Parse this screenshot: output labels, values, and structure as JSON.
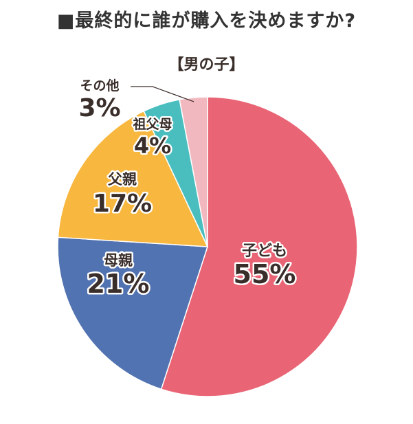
{
  "chart_data": {
    "type": "pie",
    "title": "■最終的に誰が購入を決めますか?",
    "subtitle": "【男の子】",
    "slices": [
      {
        "label": "子ども",
        "value": 55,
        "display": "55%",
        "color": "#E96474"
      },
      {
        "label": "母親",
        "value": 21,
        "display": "21%",
        "color": "#5273B2"
      },
      {
        "label": "父親",
        "value": 17,
        "display": "17%",
        "color": "#F8B73E"
      },
      {
        "label": "祖父母",
        "value": 4,
        "display": "4%",
        "color": "#4ABEBF"
      },
      {
        "label": "その他",
        "value": 3,
        "display": "3%",
        "color": "#F2B8C0"
      }
    ],
    "start_angle_deg": 0,
    "direction": "clockwise",
    "legend": "none"
  }
}
